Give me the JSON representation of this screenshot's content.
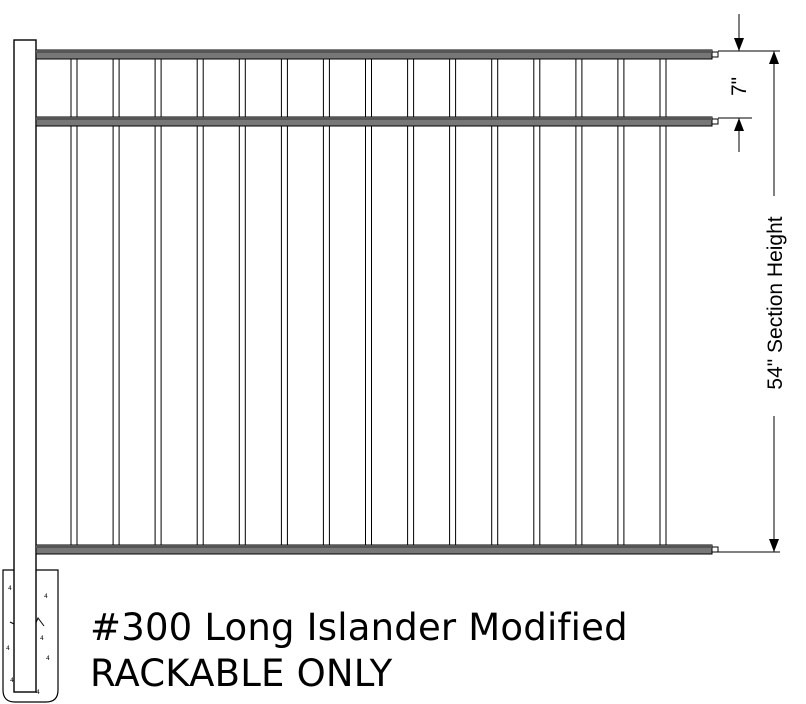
{
  "drawing": {
    "title": "#300 Long Islander Modified",
    "subtitle": "RACKABLE ONLY",
    "rail_spacing_label": "7\"",
    "section_height_label": "54\" Section Height",
    "picket_count": 15,
    "rail_count": 3
  }
}
